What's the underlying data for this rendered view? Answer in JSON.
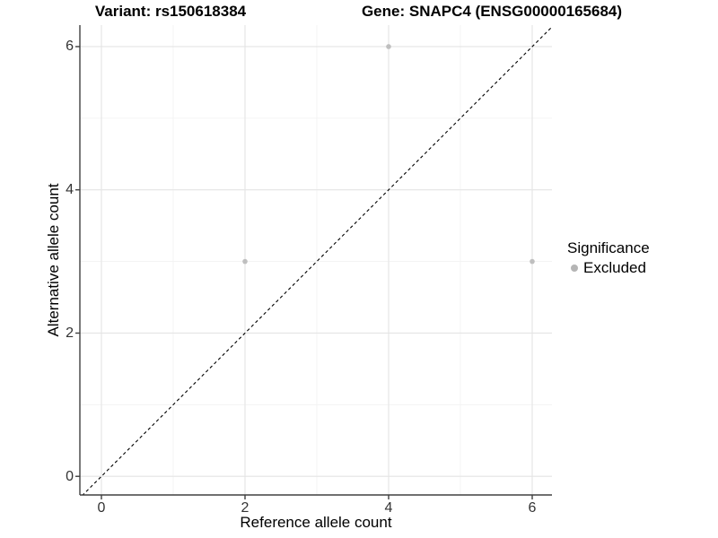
{
  "chart_data": {
    "type": "scatter",
    "titles": {
      "left": "Variant: rs150618384",
      "right": "Gene: SNAPC4 (ENSG00000165684)"
    },
    "xlabel": "Reference allele count",
    "ylabel": "Alternative allele count",
    "xlim": [
      -0.3,
      6.275
    ],
    "ylim": [
      -0.26,
      6.3
    ],
    "xticks": [
      0,
      2,
      4,
      6
    ],
    "yticks": [
      0,
      2,
      4,
      6
    ],
    "minor_xticks": [
      1,
      3,
      5
    ],
    "minor_yticks": [
      1,
      3,
      5
    ],
    "grid": true,
    "identity_line": {
      "style": "dashed",
      "color": "#000000",
      "equation": "y = x"
    },
    "series": [
      {
        "name": "Excluded",
        "color": "#bfbfbf",
        "points": [
          {
            "x": 2,
            "y": 3
          },
          {
            "x": 4,
            "y": 6
          },
          {
            "x": 6,
            "y": 3
          }
        ]
      }
    ],
    "legend": {
      "title": "Significance",
      "position": "right",
      "items": [
        {
          "label": "Excluded",
          "color": "#b5b5b5"
        }
      ]
    },
    "colors": {
      "background": "#ffffff",
      "axis": "#404040",
      "grid_major": "#e4e4e4",
      "grid_minor": "#f1f1f1",
      "tick_text": "#333333"
    }
  }
}
